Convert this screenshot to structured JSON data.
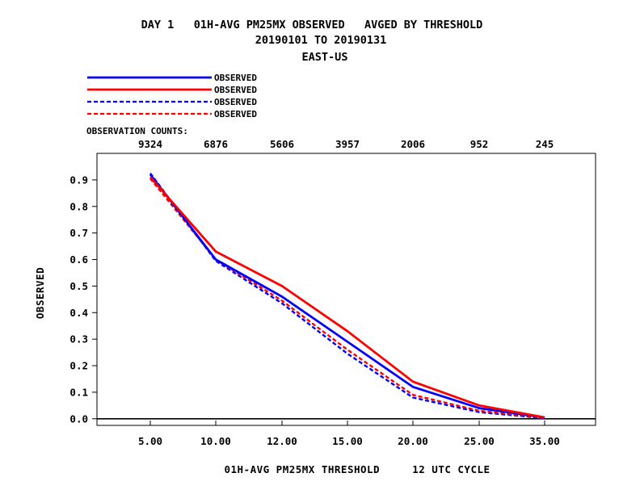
{
  "header": {
    "title_line1": "DAY 1   01H-AVG PM25MX OBSERVED   AVGED BY THRESHOLD",
    "title_line2": "20190101 TO 20190131",
    "title_line3": "EAST-US"
  },
  "observation_counts": {
    "label": "OBSERVATION COUNTS:",
    "values": [
      "9324",
      "6876",
      "5606",
      "3957",
      "2006",
      "952",
      "245"
    ]
  },
  "chart_data": {
    "type": "line",
    "xlabel": "01H-AVG PM25MX THRESHOLD     12 UTC CYCLE",
    "ylabel": "OBSERVED",
    "categories": [
      "5.00",
      "10.00",
      "12.00",
      "15.00",
      "20.00",
      "25.00",
      "35.00"
    ],
    "yticks": [
      "0.0",
      "0.1",
      "0.2",
      "0.3",
      "0.4",
      "0.5",
      "0.6",
      "0.7",
      "0.8",
      "0.9"
    ],
    "ylim": [
      -0.025,
      1.0
    ],
    "grid": false,
    "legend_position": "top-left",
    "series": [
      {
        "name": "OBSERVED",
        "color": "#0000ff",
        "dashed": false,
        "values": [
          0.92,
          0.6,
          0.46,
          0.29,
          0.12,
          0.04,
          0.005
        ]
      },
      {
        "name": "OBSERVED",
        "color": "#ff0000",
        "dashed": false,
        "values": [
          0.91,
          0.63,
          0.5,
          0.33,
          0.14,
          0.05,
          0.005
        ]
      },
      {
        "name": "OBSERVED",
        "color": "#0000ff",
        "dashed": true,
        "values": [
          0.925,
          0.595,
          0.435,
          0.245,
          0.08,
          0.025,
          0.002
        ]
      },
      {
        "name": "OBSERVED",
        "color": "#ff0000",
        "dashed": true,
        "values": [
          0.905,
          0.6,
          0.445,
          0.26,
          0.09,
          0.03,
          0.003
        ]
      }
    ]
  }
}
